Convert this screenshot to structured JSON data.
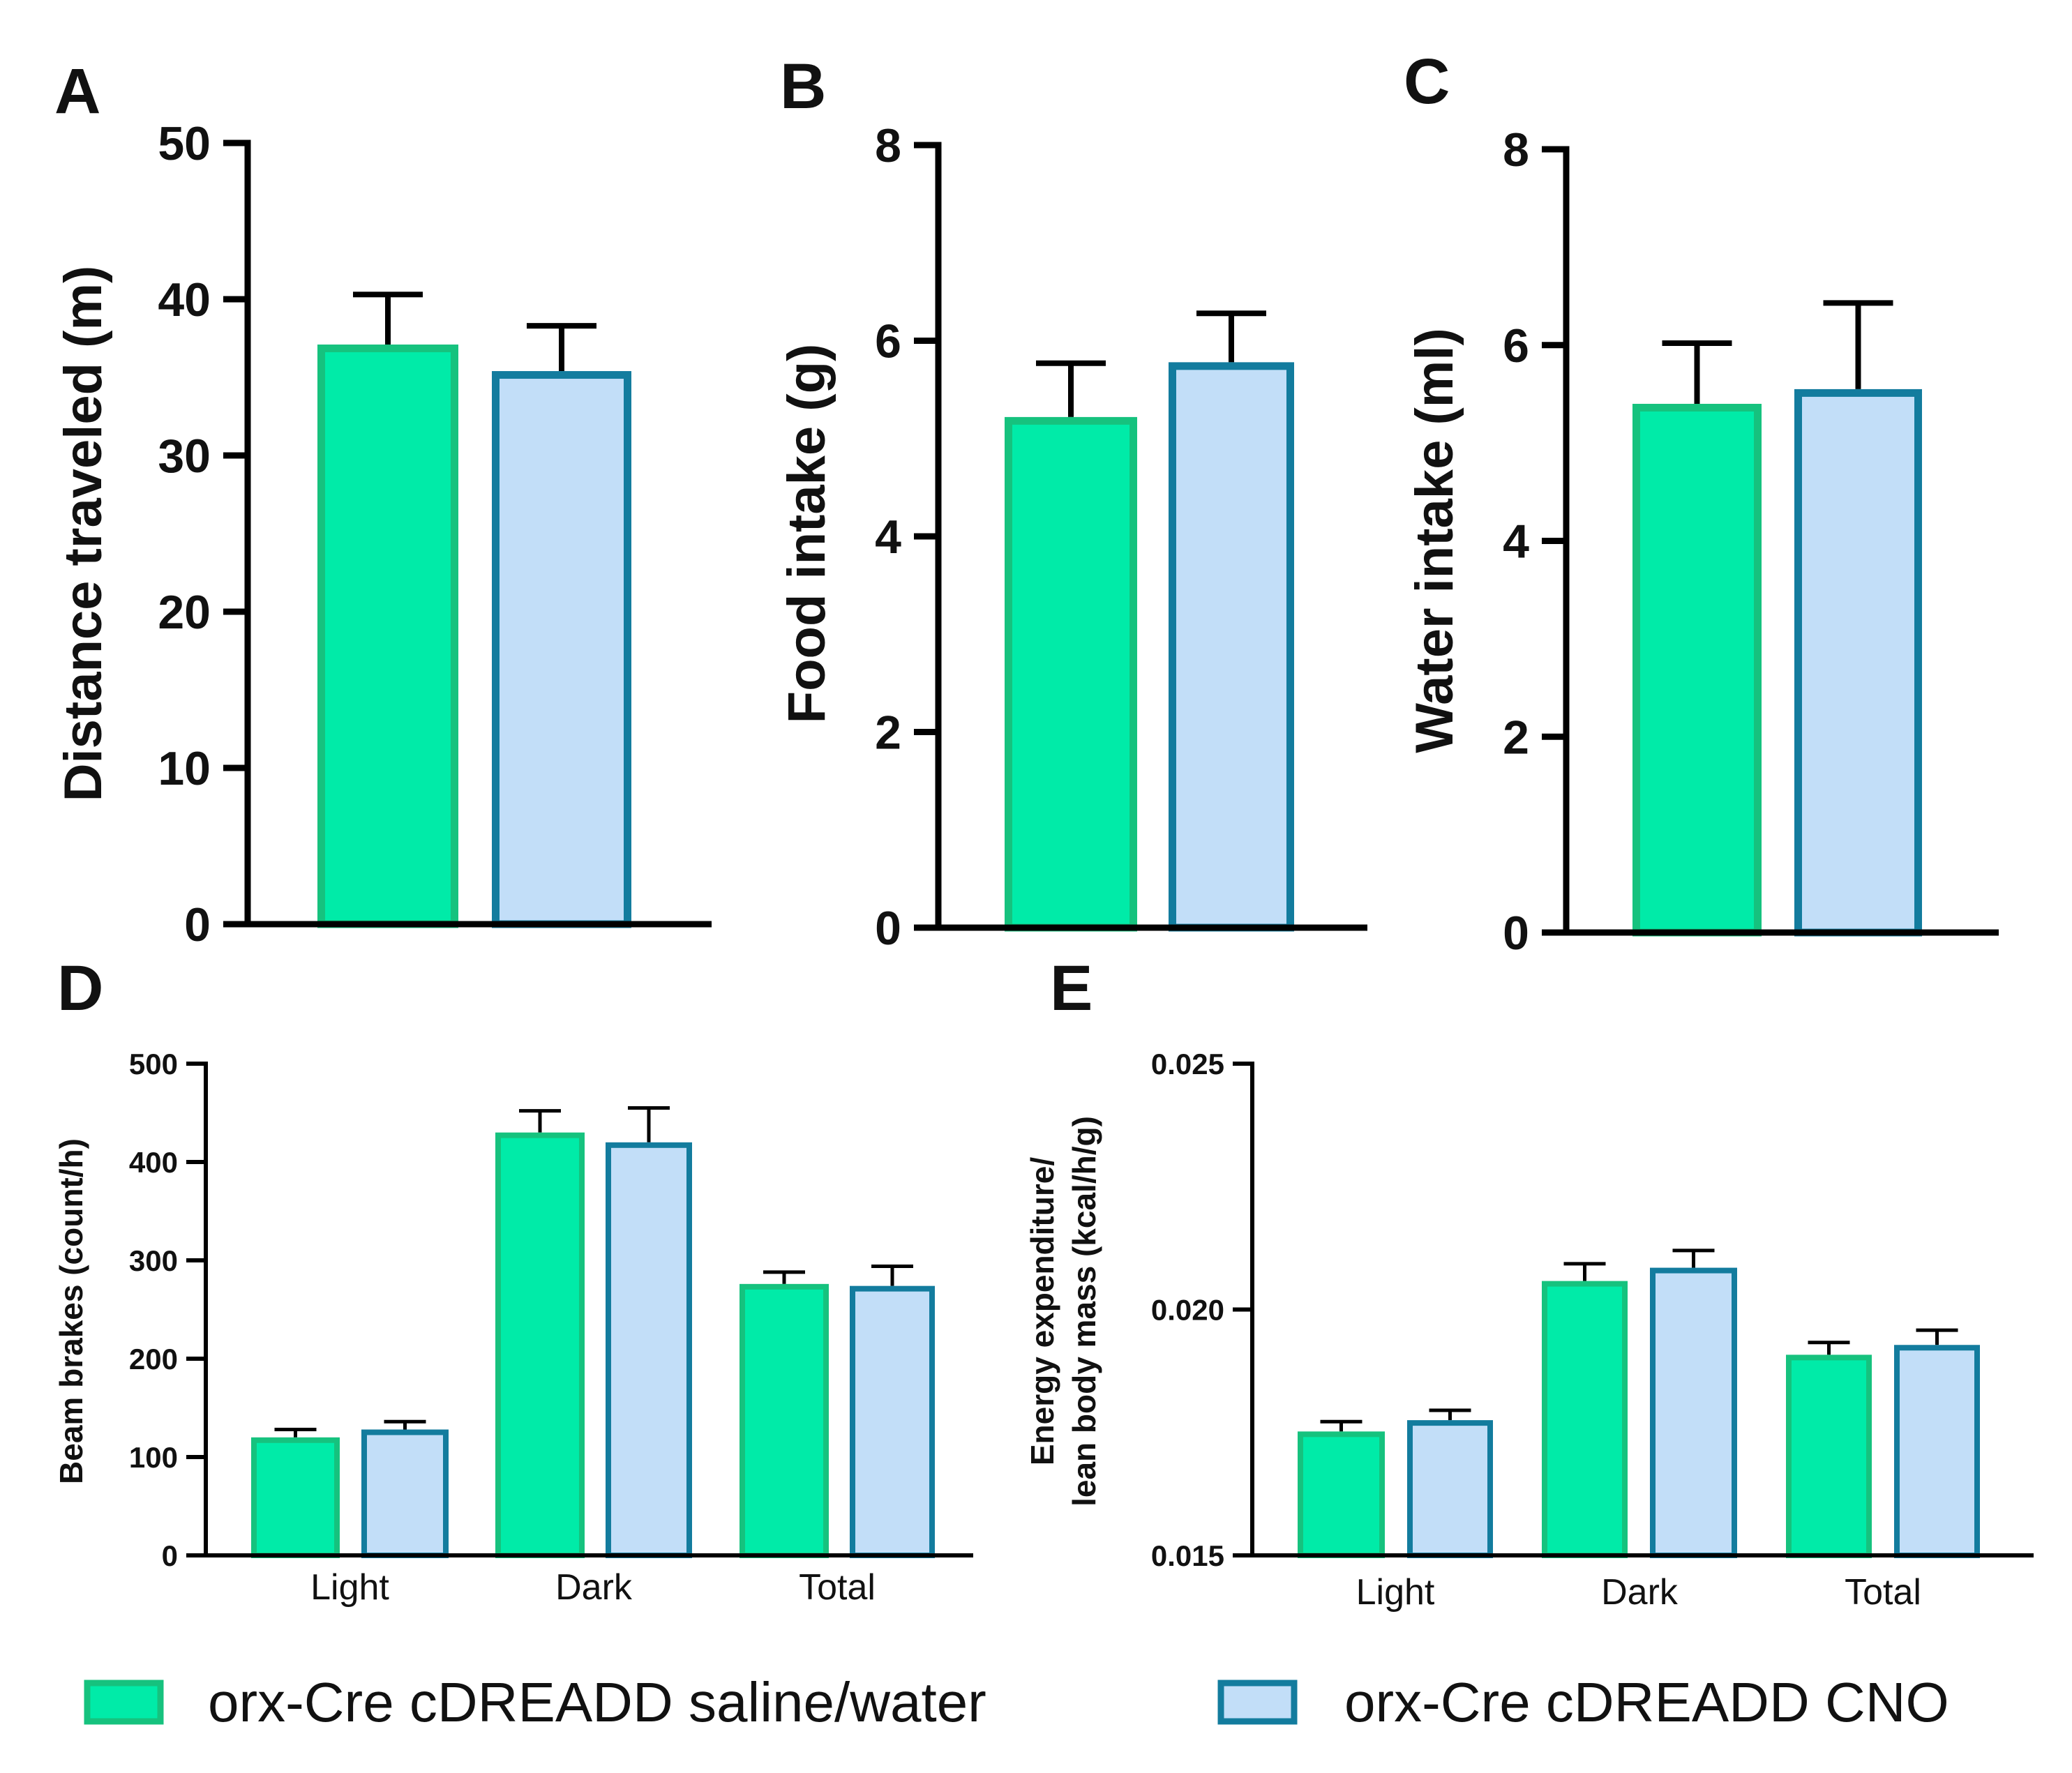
{
  "colors": {
    "saline_fill": "#00EBA8",
    "saline_stroke": "#16C27E",
    "cno_fill": "#C2DEF8",
    "cno_stroke": "#137C9E",
    "axis": "#000000"
  },
  "legend": {
    "items": [
      {
        "name": "orx-Cre cDREADD saline/water",
        "series": "saline"
      },
      {
        "name": "orx-Cre cDREADD CNO",
        "series": "cno"
      }
    ]
  },
  "chart_data": [
    {
      "panel": "A",
      "type": "bar",
      "title": "",
      "xlabel": "",
      "ylabel": "Distance traveled (m)",
      "ylim": [
        0,
        50
      ],
      "yticks": [
        0,
        10,
        20,
        30,
        40,
        50
      ],
      "ytick_labels": [
        "0",
        "10",
        "20",
        "30",
        "40",
        "50"
      ],
      "categories": [
        ""
      ],
      "series": [
        {
          "name": "orx-Cre cDREADD saline/water",
          "key": "saline",
          "values": [
            37.1
          ],
          "errors": [
            3.2
          ]
        },
        {
          "name": "orx-Cre cDREADD CNO",
          "key": "cno",
          "values": [
            35.4
          ],
          "errors": [
            2.9
          ]
        }
      ]
    },
    {
      "panel": "B",
      "type": "bar",
      "title": "",
      "xlabel": "",
      "ylabel": "Food intake (g)",
      "ylim": [
        0,
        8
      ],
      "yticks": [
        0,
        2,
        4,
        6,
        8
      ],
      "ytick_labels": [
        "0",
        "2",
        "4",
        "6",
        "8"
      ],
      "categories": [
        ""
      ],
      "series": [
        {
          "name": "orx-Cre cDREADD saline/water",
          "key": "saline",
          "values": [
            5.22
          ],
          "errors": [
            0.55
          ]
        },
        {
          "name": "orx-Cre cDREADD CNO",
          "key": "cno",
          "values": [
            5.78
          ],
          "errors": [
            0.5
          ]
        }
      ]
    },
    {
      "panel": "C",
      "type": "bar",
      "title": "",
      "xlabel": "",
      "ylabel": "Water intake (ml)",
      "ylim": [
        0,
        8
      ],
      "yticks": [
        0,
        2,
        4,
        6,
        8
      ],
      "ytick_labels": [
        "0",
        "2",
        "4",
        "6",
        "8"
      ],
      "categories": [
        ""
      ],
      "series": [
        {
          "name": "orx-Cre cDREADD saline/water",
          "key": "saline",
          "values": [
            5.4
          ],
          "errors": [
            0.62
          ]
        },
        {
          "name": "orx-Cre cDREADD CNO",
          "key": "cno",
          "values": [
            5.55
          ],
          "errors": [
            0.88
          ]
        }
      ]
    },
    {
      "panel": "D",
      "type": "bar",
      "title": "",
      "xlabel": "",
      "ylabel": "Beam brakes (count/h)",
      "ylim": [
        0,
        500
      ],
      "yticks": [
        0,
        100,
        200,
        300,
        400,
        500
      ],
      "ytick_labels": [
        "0",
        "100",
        "200",
        "300",
        "400",
        "500"
      ],
      "categories": [
        "Light",
        "Dark",
        "Total"
      ],
      "series": [
        {
          "name": "orx-Cre cDREADD saline/water",
          "key": "saline",
          "values": [
            120,
            430,
            276
          ],
          "errors": [
            8,
            22,
            12
          ]
        },
        {
          "name": "orx-Cre cDREADD CNO",
          "key": "cno",
          "values": [
            128,
            420,
            274
          ],
          "errors": [
            8,
            35,
            20
          ]
        }
      ]
    },
    {
      "panel": "E",
      "type": "bar",
      "title": "",
      "xlabel": "",
      "ylabel": "Energy expenditure/ lean body mass (kcal/h/g)",
      "ylabel_lines": [
        "Energy expenditure/",
        "lean body mass (kcal/h/g)"
      ],
      "ylim": [
        0.015,
        0.025
      ],
      "yticks": [
        0.015,
        0.02,
        0.025
      ],
      "ytick_labels": [
        "0.015",
        "0.020",
        "0.025"
      ],
      "categories": [
        "Light",
        "Dark",
        "Total"
      ],
      "series": [
        {
          "name": "orx-Cre cDREADD saline/water",
          "key": "saline",
          "values": [
            0.01752,
            0.02058,
            0.01908
          ],
          "errors": [
            0.0002,
            0.00035,
            0.00025
          ]
        },
        {
          "name": "orx-Cre cDREADD CNO",
          "key": "cno",
          "values": [
            0.01775,
            0.02085,
            0.01928
          ],
          "errors": [
            0.0002,
            0.00035,
            0.0003
          ]
        }
      ]
    }
  ]
}
